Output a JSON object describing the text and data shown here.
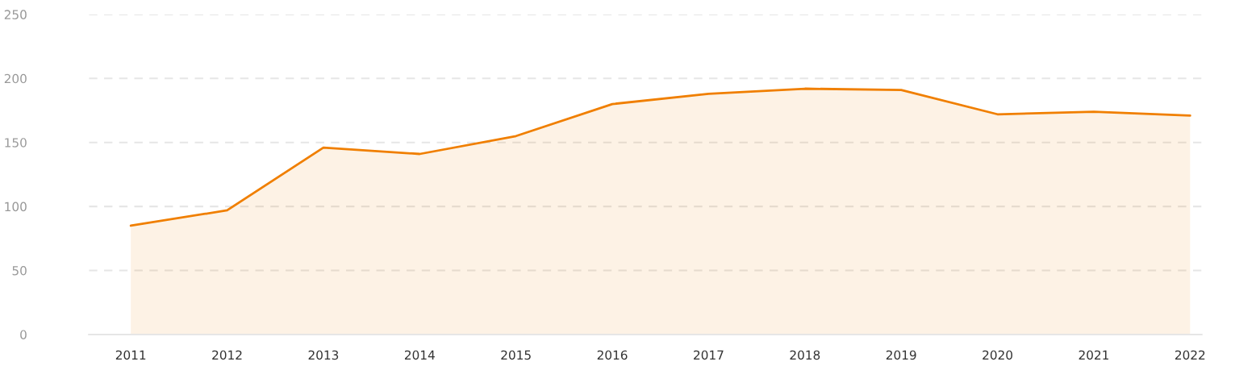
{
  "chart_data": {
    "type": "area",
    "categories": [
      "2011",
      "2012",
      "2013",
      "2014",
      "2015",
      "2016",
      "2017",
      "2018",
      "2019",
      "2020",
      "2021",
      "2022"
    ],
    "series": [
      {
        "color": "#f07f00",
        "values": [
          85,
          97,
          146,
          141,
          155,
          180,
          188,
          192,
          191,
          172,
          174,
          171
        ]
      }
    ],
    "ylim": [
      0,
      250
    ],
    "yticks": [
      0,
      50,
      100,
      150,
      200,
      250
    ],
    "grid": "y",
    "legend": false
  }
}
